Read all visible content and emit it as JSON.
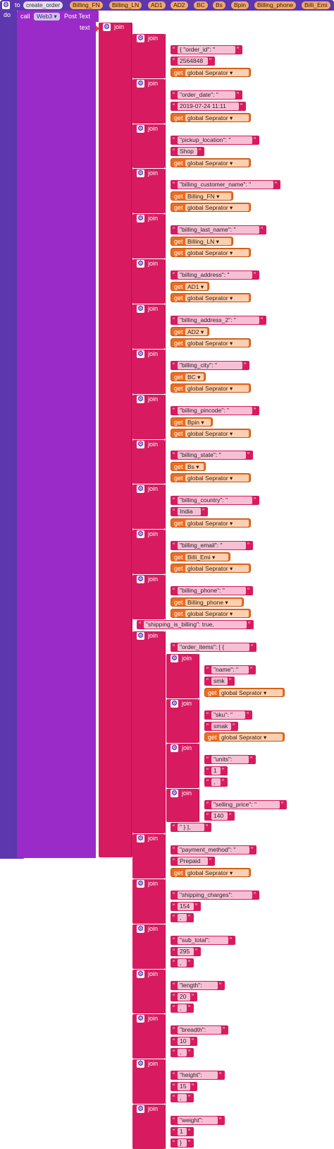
{
  "procedure": {
    "to_kw": "to",
    "name": "create_order",
    "params": [
      "Billing_FN",
      "Billing_LN",
      "AD1",
      "AD2",
      "BC",
      "Bs",
      "Bpin",
      "Billing_phone",
      "Billi_Emi"
    ],
    "do_kw": "do"
  },
  "call_block": {
    "call_kw": "call",
    "component": "Web3",
    "method": "Post Text",
    "text_kw": "text"
  },
  "join_kw": "join",
  "get_kw": "get",
  "icons": {
    "mutator": "gear-icon",
    "dropdown": "triangle-down-icon"
  },
  "colors": {
    "procedure": "#5c37ad",
    "text": "#d81b60",
    "variable": "#f06c1e",
    "component": "#9a2bc9"
  },
  "items": [
    {
      "kind": "join",
      "depth": 1
    },
    {
      "kind": "join",
      "depth": 2
    },
    {
      "kind": "text",
      "depth": 3,
      "value": "{ \"order_id\": \""
    },
    {
      "kind": "text",
      "depth": 3,
      "value": "2564848"
    },
    {
      "kind": "get",
      "depth": 3,
      "value": "global Seprator"
    },
    {
      "kind": "join",
      "depth": 2
    },
    {
      "kind": "text",
      "depth": 3,
      "value": "\"order_date\": \""
    },
    {
      "kind": "text",
      "depth": 3,
      "value": "2019-07-24 11:11"
    },
    {
      "kind": "get",
      "depth": 3,
      "value": "global Seprator"
    },
    {
      "kind": "join",
      "depth": 2
    },
    {
      "kind": "text",
      "depth": 3,
      "value": "\"pickup_location\": \""
    },
    {
      "kind": "text",
      "depth": 3,
      "value": "Shop"
    },
    {
      "kind": "get",
      "depth": 3,
      "value": "global Seprator"
    },
    {
      "kind": "join",
      "depth": 2
    },
    {
      "kind": "text",
      "depth": 3,
      "value": "\"billing_customer_name\": \""
    },
    {
      "kind": "get",
      "depth": 3,
      "value": "Billing_FN"
    },
    {
      "kind": "get",
      "depth": 3,
      "value": "global Seprator"
    },
    {
      "kind": "join",
      "depth": 2
    },
    {
      "kind": "text",
      "depth": 3,
      "value": "\"billing_last_name\": \""
    },
    {
      "kind": "get",
      "depth": 3,
      "value": "Billing_LN"
    },
    {
      "kind": "get",
      "depth": 3,
      "value": "global Seprator"
    },
    {
      "kind": "join",
      "depth": 2
    },
    {
      "kind": "text",
      "depth": 3,
      "value": "\"billing_address\": \""
    },
    {
      "kind": "get",
      "depth": 3,
      "value": "AD1"
    },
    {
      "kind": "get",
      "depth": 3,
      "value": "global Seprator"
    },
    {
      "kind": "join",
      "depth": 2
    },
    {
      "kind": "text",
      "depth": 3,
      "value": "\"billing_address_2\": \""
    },
    {
      "kind": "get",
      "depth": 3,
      "value": "AD2"
    },
    {
      "kind": "get",
      "depth": 3,
      "value": "global Seprator"
    },
    {
      "kind": "join",
      "depth": 2
    },
    {
      "kind": "text",
      "depth": 3,
      "value": "\"billing_city\": \""
    },
    {
      "kind": "get",
      "depth": 3,
      "value": "BC"
    },
    {
      "kind": "get",
      "depth": 3,
      "value": "global Seprator"
    },
    {
      "kind": "join",
      "depth": 2
    },
    {
      "kind": "text",
      "depth": 3,
      "value": "\"billing_pincode\": \""
    },
    {
      "kind": "get",
      "depth": 3,
      "value": "Bpin"
    },
    {
      "kind": "get",
      "depth": 3,
      "value": "global Seprator"
    },
    {
      "kind": "join",
      "depth": 2
    },
    {
      "kind": "text",
      "depth": 3,
      "value": "\"billing_state\": \""
    },
    {
      "kind": "get",
      "depth": 3,
      "value": "Bs"
    },
    {
      "kind": "get",
      "depth": 3,
      "value": "global Seprator"
    },
    {
      "kind": "join",
      "depth": 2
    },
    {
      "kind": "text",
      "depth": 3,
      "value": "\"billing_country\": \""
    },
    {
      "kind": "text",
      "depth": 3,
      "value": "India"
    },
    {
      "kind": "get",
      "depth": 3,
      "value": "global Seprator"
    },
    {
      "kind": "join",
      "depth": 2
    },
    {
      "kind": "text",
      "depth": 3,
      "value": "\"billing_email\": \""
    },
    {
      "kind": "get",
      "depth": 3,
      "value": "Billi_Emi"
    },
    {
      "kind": "get",
      "depth": 3,
      "value": "global Seprator"
    },
    {
      "kind": "join",
      "depth": 2
    },
    {
      "kind": "text",
      "depth": 3,
      "value": "\"billing_phone\": \""
    },
    {
      "kind": "get",
      "depth": 3,
      "value": "Billing_phone"
    },
    {
      "kind": "get",
      "depth": 3,
      "value": "global Seprator"
    },
    {
      "kind": "text",
      "depth": 2,
      "value": "\"shipping_is_billing\": true,"
    },
    {
      "kind": "join",
      "depth": 2
    },
    {
      "kind": "text",
      "depth": 3,
      "value": "\"order_items\": [ { "
    },
    {
      "kind": "join",
      "depth": 3
    },
    {
      "kind": "text",
      "depth": 4,
      "value": "\"name\": \""
    },
    {
      "kind": "text",
      "depth": 4,
      "value": "smk"
    },
    {
      "kind": "get",
      "depth": 4,
      "value": "global Seprator"
    },
    {
      "kind": "join",
      "depth": 3
    },
    {
      "kind": "text",
      "depth": 4,
      "value": "\"sku\": \""
    },
    {
      "kind": "text",
      "depth": 4,
      "value": "smak"
    },
    {
      "kind": "get",
      "depth": 4,
      "value": "global Seprator"
    },
    {
      "kind": "join",
      "depth": 3
    },
    {
      "kind": "text",
      "depth": 4,
      "value": "\"units\": "
    },
    {
      "kind": "text",
      "depth": 4,
      "value": "1"
    },
    {
      "kind": "text",
      "depth": 4,
      "value": ","
    },
    {
      "kind": "join",
      "depth": 3
    },
    {
      "kind": "text",
      "depth": 4,
      "value": "\"selling_price\": \""
    },
    {
      "kind": "text",
      "depth": 4,
      "value": "140"
    },
    {
      "kind": "text",
      "depth": 3,
      "value": "\" } ],"
    },
    {
      "kind": "join",
      "depth": 2
    },
    {
      "kind": "text",
      "depth": 3,
      "value": "\"payment_method\": \""
    },
    {
      "kind": "text",
      "depth": 3,
      "value": "Prepaid"
    },
    {
      "kind": "get",
      "depth": 3,
      "value": "global Seprator"
    },
    {
      "kind": "join",
      "depth": 2
    },
    {
      "kind": "text",
      "depth": 3,
      "value": "\"shipping_charges\": "
    },
    {
      "kind": "text",
      "depth": 3,
      "value": "154"
    },
    {
      "kind": "text",
      "depth": 3,
      "value": ","
    },
    {
      "kind": "join",
      "depth": 2
    },
    {
      "kind": "text",
      "depth": 3,
      "value": "\"sub_total\": "
    },
    {
      "kind": "text",
      "depth": 3,
      "value": "295"
    },
    {
      "kind": "text",
      "depth": 3,
      "value": ","
    },
    {
      "kind": "join",
      "depth": 2
    },
    {
      "kind": "text",
      "depth": 3,
      "value": "\"length\": "
    },
    {
      "kind": "text",
      "depth": 3,
      "value": "20"
    },
    {
      "kind": "text",
      "depth": 3,
      "value": ","
    },
    {
      "kind": "join",
      "depth": 2
    },
    {
      "kind": "text",
      "depth": 3,
      "value": "\"breadth\": "
    },
    {
      "kind": "text",
      "depth": 3,
      "value": "10"
    },
    {
      "kind": "text",
      "depth": 3,
      "value": ","
    },
    {
      "kind": "join",
      "depth": 2
    },
    {
      "kind": "text",
      "depth": 3,
      "value": "\"height\": "
    },
    {
      "kind": "text",
      "depth": 3,
      "value": "15"
    },
    {
      "kind": "text",
      "depth": 3,
      "value": ","
    },
    {
      "kind": "join",
      "depth": 2
    },
    {
      "kind": "text",
      "depth": 3,
      "value": "\"weight\": "
    },
    {
      "kind": "text",
      "depth": 3,
      "value": "1"
    },
    {
      "kind": "text",
      "depth": 3,
      "value": "}"
    }
  ]
}
